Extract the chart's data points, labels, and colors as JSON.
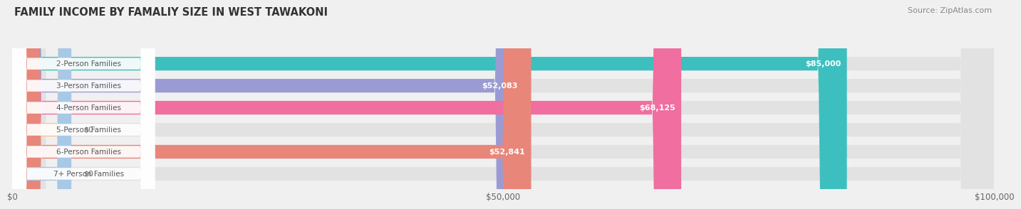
{
  "title": "FAMILY INCOME BY FAMALIY SIZE IN WEST TAWAKONI",
  "source": "Source: ZipAtlas.com",
  "categories": [
    "2-Person Families",
    "3-Person Families",
    "4-Person Families",
    "5-Person Families",
    "6-Person Families",
    "7+ Person Families"
  ],
  "values": [
    85000,
    52083,
    68125,
    0,
    52841,
    0
  ],
  "bar_colors": [
    "#3dbfbf",
    "#9b9bd4",
    "#f06ea0",
    "#f5c99a",
    "#e8867a",
    "#a8c8e8"
  ],
  "label_values": [
    "$85,000",
    "$52,083",
    "$68,125",
    "$0",
    "$52,841",
    "$0"
  ],
  "xlim": [
    0,
    100000
  ],
  "xticks": [
    0,
    50000,
    100000
  ],
  "xticklabels": [
    "$0",
    "$50,000",
    "$100,000"
  ],
  "bg_color": "#f0f0f0",
  "bar_bg_color": "#e2e2e2",
  "title_color": "#333333",
  "source_color": "#888888"
}
